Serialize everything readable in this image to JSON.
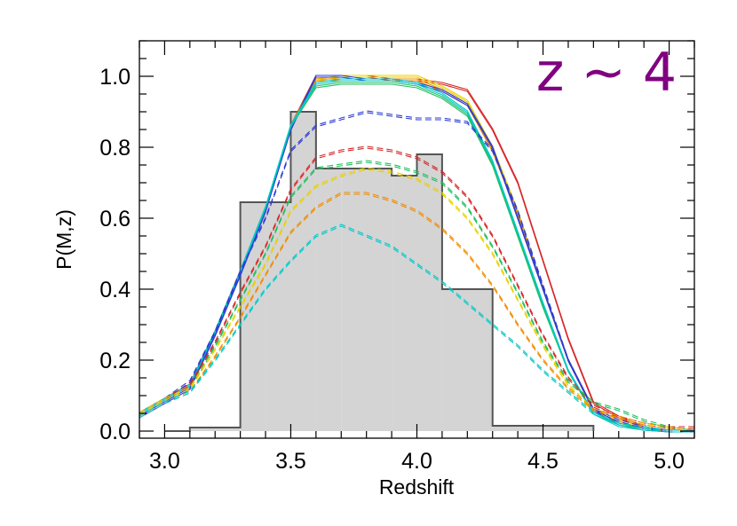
{
  "chart_data": {
    "type": "line",
    "title": "",
    "xlabel": "Redshift",
    "ylabel": "P(M,z)",
    "annotation": "z ~ 4",
    "annotation_color": "#800080",
    "xlim": [
      2.9,
      5.1
    ],
    "ylim": [
      -0.02,
      1.1
    ],
    "xticks": [
      3.0,
      3.5,
      4.0,
      4.5,
      5.0
    ],
    "xtick_labels": [
      "3.0",
      "3.5",
      "4.0",
      "4.5",
      "5.0"
    ],
    "yticks": [
      0.0,
      0.2,
      0.4,
      0.6,
      0.8,
      1.0
    ],
    "ytick_labels": [
      "0.0",
      "0.2",
      "0.4",
      "0.6",
      "0.8",
      "1.0"
    ],
    "grid": false,
    "histogram": {
      "fill": "#d4d4d4",
      "stroke": "#555555",
      "edges": [
        3.0,
        3.1,
        3.3,
        3.4,
        3.5,
        3.6,
        3.7,
        3.9,
        4.0,
        4.1,
        4.3,
        4.5,
        4.7
      ],
      "values": [
        0.0,
        0.01,
        0.645,
        0.645,
        0.9,
        0.74,
        0.74,
        0.72,
        0.78,
        0.4,
        0.015,
        0.015
      ]
    },
    "x": [
      2.9,
      3.0,
      3.1,
      3.2,
      3.3,
      3.4,
      3.5,
      3.6,
      3.7,
      3.8,
      3.9,
      4.0,
      4.1,
      4.2,
      4.3,
      4.4,
      4.5,
      4.6,
      4.7,
      4.8,
      4.9,
      5.0,
      5.1
    ],
    "series": [
      {
        "color": "#d62728",
        "style": "solid",
        "values": [
          0.05,
          0.09,
          0.13,
          0.28,
          0.45,
          0.62,
          0.86,
          1.0,
          1.0,
          1.0,
          0.99,
          0.99,
          0.98,
          0.96,
          0.85,
          0.7,
          0.48,
          0.26,
          0.08,
          0.04,
          0.01,
          0.0,
          0.0
        ]
      },
      {
        "color": "#e8d000",
        "style": "solid",
        "values": [
          0.05,
          0.09,
          0.13,
          0.28,
          0.45,
          0.62,
          0.86,
          0.99,
          1.0,
          1.0,
          1.0,
          1.0,
          0.97,
          0.93,
          0.8,
          0.62,
          0.4,
          0.2,
          0.06,
          0.03,
          0.01,
          0.0,
          0.0
        ]
      },
      {
        "color": "#f08c00",
        "style": "solid",
        "values": [
          0.05,
          0.09,
          0.13,
          0.28,
          0.45,
          0.62,
          0.86,
          0.99,
          0.99,
          0.99,
          0.99,
          0.99,
          0.96,
          0.92,
          0.79,
          0.61,
          0.4,
          0.2,
          0.06,
          0.03,
          0.01,
          0.0,
          0.0
        ]
      },
      {
        "color": "#2e3cd6",
        "style": "solid",
        "values": [
          0.04,
          0.08,
          0.12,
          0.27,
          0.44,
          0.62,
          0.85,
          1.0,
          1.0,
          0.99,
          0.99,
          0.98,
          0.96,
          0.92,
          0.8,
          0.6,
          0.4,
          0.2,
          0.06,
          0.02,
          0.005,
          0.0,
          0.0
        ]
      },
      {
        "color": "#1fbf60",
        "style": "solid",
        "values": [
          0.05,
          0.09,
          0.13,
          0.28,
          0.45,
          0.63,
          0.86,
          0.97,
          0.98,
          0.98,
          0.98,
          0.97,
          0.94,
          0.89,
          0.75,
          0.55,
          0.35,
          0.17,
          0.05,
          0.02,
          0.005,
          0.0,
          0.0
        ]
      },
      {
        "color": "#00c8c8",
        "style": "solid",
        "values": [
          0.05,
          0.09,
          0.13,
          0.28,
          0.45,
          0.63,
          0.86,
          0.98,
          0.99,
          0.99,
          0.99,
          0.98,
          0.95,
          0.9,
          0.76,
          0.56,
          0.36,
          0.17,
          0.05,
          0.015,
          0.005,
          0.0,
          0.0
        ]
      },
      {
        "color": "#2e3cd6",
        "style": "dashed",
        "values": [
          0.05,
          0.09,
          0.14,
          0.28,
          0.45,
          0.6,
          0.79,
          0.86,
          0.88,
          0.9,
          0.89,
          0.88,
          0.88,
          0.87,
          0.79,
          0.62,
          0.41,
          0.2,
          0.06,
          0.03,
          0.01,
          0.0,
          0.0
        ]
      },
      {
        "color": "#d62728",
        "style": "dashed",
        "values": [
          0.05,
          0.09,
          0.13,
          0.25,
          0.39,
          0.52,
          0.68,
          0.77,
          0.79,
          0.8,
          0.79,
          0.77,
          0.73,
          0.66,
          0.55,
          0.41,
          0.27,
          0.15,
          0.07,
          0.04,
          0.02,
          0.01,
          0.01
        ]
      },
      {
        "color": "#1fbf60",
        "style": "dashed",
        "values": [
          0.05,
          0.09,
          0.12,
          0.24,
          0.37,
          0.5,
          0.66,
          0.74,
          0.75,
          0.76,
          0.75,
          0.73,
          0.7,
          0.63,
          0.52,
          0.39,
          0.25,
          0.14,
          0.08,
          0.06,
          0.03,
          0.01,
          0.0
        ]
      },
      {
        "color": "#e8d000",
        "style": "dashed",
        "values": [
          0.05,
          0.09,
          0.12,
          0.23,
          0.35,
          0.47,
          0.62,
          0.69,
          0.72,
          0.74,
          0.73,
          0.71,
          0.67,
          0.6,
          0.5,
          0.37,
          0.24,
          0.13,
          0.06,
          0.04,
          0.02,
          0.01,
          0.0
        ]
      },
      {
        "color": "#f08c00",
        "style": "dashed",
        "values": [
          0.04,
          0.08,
          0.11,
          0.21,
          0.32,
          0.44,
          0.56,
          0.63,
          0.67,
          0.67,
          0.65,
          0.62,
          0.57,
          0.5,
          0.41,
          0.3,
          0.2,
          0.12,
          0.06,
          0.04,
          0.02,
          0.01,
          0.0
        ]
      },
      {
        "color": "#00c8c8",
        "style": "dashed",
        "values": [
          0.04,
          0.08,
          0.11,
          0.2,
          0.3,
          0.4,
          0.48,
          0.55,
          0.58,
          0.55,
          0.52,
          0.47,
          0.42,
          0.36,
          0.3,
          0.24,
          0.17,
          0.11,
          0.05,
          0.02,
          0.01,
          0.0,
          0.0
        ]
      }
    ]
  }
}
